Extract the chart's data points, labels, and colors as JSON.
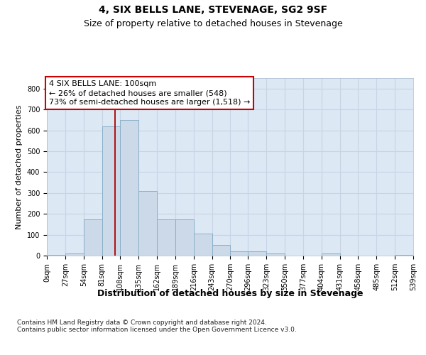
{
  "title": "4, SIX BELLS LANE, STEVENAGE, SG2 9SF",
  "subtitle": "Size of property relative to detached houses in Stevenage",
  "xlabel": "Distribution of detached houses by size in Stevenage",
  "ylabel": "Number of detached properties",
  "bar_values": [
    5,
    10,
    175,
    620,
    650,
    310,
    175,
    175,
    105,
    50,
    20,
    20,
    10,
    0,
    0,
    10,
    0,
    0,
    0,
    5
  ],
  "bar_edges": [
    0,
    27,
    54,
    81,
    108,
    135,
    162,
    189,
    216,
    243,
    270,
    296,
    323,
    350,
    377,
    404,
    431,
    458,
    485,
    512,
    539
  ],
  "tick_labels": [
    "0sqm",
    "27sqm",
    "54sqm",
    "81sqm",
    "108sqm",
    "135sqm",
    "162sqm",
    "189sqm",
    "216sqm",
    "243sqm",
    "270sqm",
    "296sqm",
    "323sqm",
    "350sqm",
    "377sqm",
    "404sqm",
    "431sqm",
    "458sqm",
    "485sqm",
    "512sqm",
    "539sqm"
  ],
  "bar_color": "#ccd9e8",
  "bar_edgecolor": "#89afc8",
  "property_line_x": 100,
  "annotation_text": "4 SIX BELLS LANE: 100sqm\n← 26% of detached houses are smaller (548)\n73% of semi-detached houses are larger (1,518) →",
  "annotation_box_color": "#ffffff",
  "annotation_box_edgecolor": "#cc0000",
  "vline_color": "#aa0000",
  "ylim": [
    0,
    850
  ],
  "yticks": [
    0,
    100,
    200,
    300,
    400,
    500,
    600,
    700,
    800
  ],
  "grid_color": "#c8d4e4",
  "background_color": "#dce8f4",
  "footer_text": "Contains HM Land Registry data © Crown copyright and database right 2024.\nContains public sector information licensed under the Open Government Licence v3.0.",
  "title_fontsize": 10,
  "subtitle_fontsize": 9,
  "xlabel_fontsize": 9,
  "ylabel_fontsize": 8,
  "tick_fontsize": 7,
  "annot_fontsize": 8,
  "footer_fontsize": 6.5
}
